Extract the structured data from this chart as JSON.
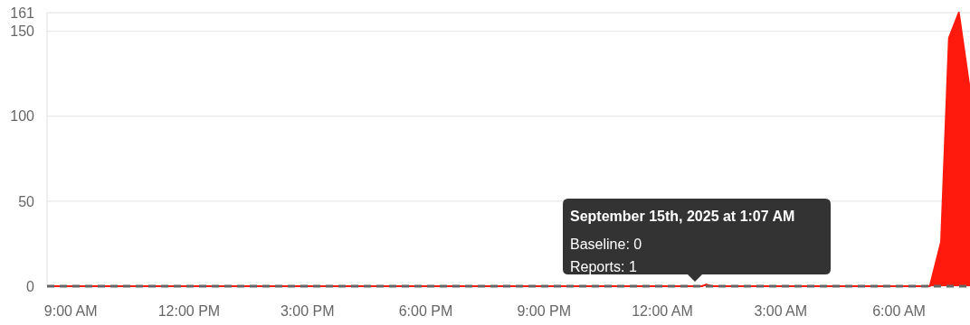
{
  "chart_data": {
    "type": "area",
    "xlim": [
      "2025-09-14T08:24",
      "2025-09-15T07:48"
    ],
    "xticks": [
      {
        "value": "2025-09-14T09:00",
        "label": "9:00 AM"
      },
      {
        "value": "2025-09-14T12:00",
        "label": "12:00 PM"
      },
      {
        "value": "2025-09-14T15:00",
        "label": "3:00 PM"
      },
      {
        "value": "2025-09-14T18:00",
        "label": "6:00 PM"
      },
      {
        "value": "2025-09-14T21:00",
        "label": "9:00 PM"
      },
      {
        "value": "2025-09-15T00:00",
        "label": "12:00 AM"
      },
      {
        "value": "2025-09-15T03:00",
        "label": "3:00 AM"
      },
      {
        "value": "2025-09-15T06:00",
        "label": "6:00 AM"
      }
    ],
    "ylim": [
      0,
      161
    ],
    "yticks": [
      0,
      50,
      100,
      150,
      161
    ],
    "grid": "y",
    "series": [
      {
        "color": "#ff1a0d",
        "x": [
          "2025-09-14T08:24",
          "2025-09-15T01:00",
          "2025-09-15T01:07",
          "2025-09-15T01:15",
          "2025-09-15T06:47",
          "2025-09-15T07:04",
          "2025-09-15T07:16",
          "2025-09-15T07:31",
          "2025-09-15T07:48"
        ],
        "values": [
          0,
          0,
          1,
          0,
          0,
          26,
          146,
          161,
          115
        ]
      },
      {
        "type": "line",
        "color": "#666666",
        "line_style": "dashed",
        "x": [
          "2025-09-14T08:24",
          "2025-09-15T07:48"
        ],
        "values": [
          0,
          0
        ]
      }
    ],
    "annotations": [
      "September 15th, 2025 at 1:07 AM",
      "Baseline: 0",
      "Reports: 1"
    ]
  }
}
